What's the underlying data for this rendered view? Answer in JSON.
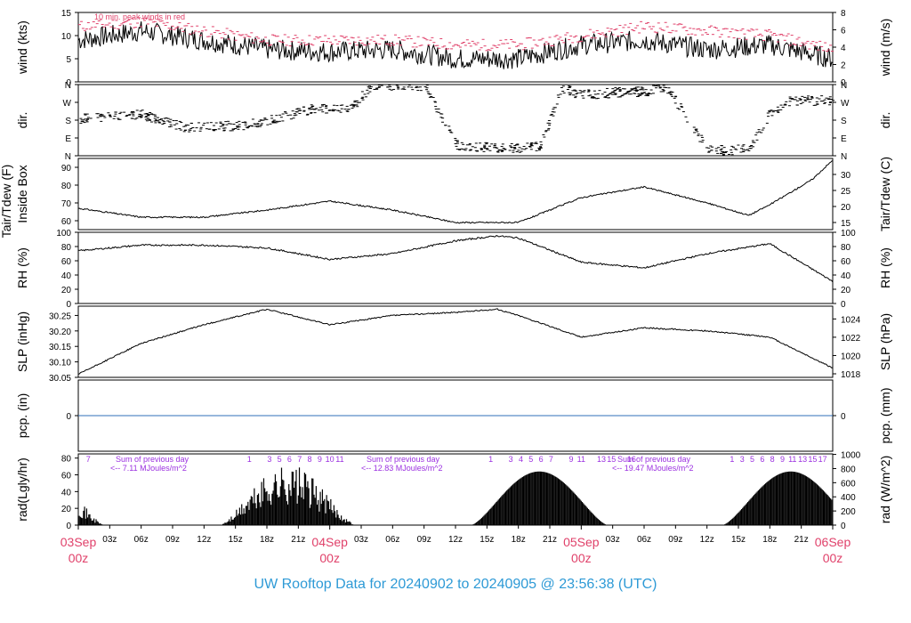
{
  "colors": {
    "peak": "#e0416a",
    "footer": "#2e9ad6",
    "precip": "#2f6fba",
    "date": "#e0416a",
    "solar": "#9b30e0",
    "trace": "#000000"
  },
  "footer": {
    "title": "UW Rooftop Data for 20240902  to  20240905 @ 23:56:38  (UTC)"
  },
  "chart_data": [
    {
      "type": "line",
      "id": "wind",
      "ylabel_left": "wind (kts)",
      "ylabel_right": "wind (m/s)",
      "ylim": [
        0,
        15
      ],
      "yticks_left": [
        "0",
        "5",
        "10",
        "15"
      ],
      "ylim_right": [
        0,
        8
      ],
      "yticks_right": [
        "0",
        "2",
        "4",
        "6",
        "8"
      ],
      "annotation": "10 min. peak winds in red",
      "series": [
        {
          "x": [
            0,
            6,
            12,
            18,
            24,
            30,
            36,
            42,
            48,
            54,
            60,
            66,
            72
          ],
          "values": [
            9,
            11,
            9,
            7,
            6.5,
            7,
            5,
            5,
            8,
            9,
            7,
            8,
            5
          ]
        },
        {
          "x": [
            0,
            6,
            12,
            18,
            24,
            30,
            36,
            42,
            48,
            54,
            60,
            66,
            72
          ],
          "values": [
            12,
            13,
            11,
            9,
            9,
            9,
            8,
            8,
            10,
            12,
            11,
            10,
            7
          ]
        }
      ]
    },
    {
      "type": "scatter",
      "id": "dir",
      "ylabel_left": "dir.",
      "ylabel_right": "dir.",
      "yticks_left": [
        "N",
        "W",
        "S",
        "E",
        "N"
      ],
      "yticks_right": [
        "N",
        "W",
        "S",
        "E",
        "N"
      ]
    },
    {
      "type": "line",
      "id": "temp",
      "ylabel_left_top": "Tair/Tdew (F)",
      "ylabel_left": "Inside Box",
      "ylabel_right": "Tair/Tdew (C)",
      "ylim": [
        55,
        95
      ],
      "yticks_left": [
        "60",
        "70",
        "80",
        "90"
      ],
      "yticks_right": [
        "15",
        "20",
        "25",
        "30"
      ],
      "series": [
        {
          "x": [
            0,
            6,
            12,
            18,
            24,
            30,
            36,
            42,
            48,
            54,
            60,
            64,
            66,
            70,
            72
          ],
          "values": [
            67,
            62,
            62,
            66,
            71,
            66,
            59,
            59,
            73,
            79,
            70,
            63,
            69,
            83,
            94
          ]
        }
      ]
    },
    {
      "type": "line",
      "id": "rh",
      "ylabel_left": "RH (%)",
      "ylabel_right": "RH (%)",
      "ylim": [
        0,
        100
      ],
      "yticks_left": [
        "0",
        "20",
        "40",
        "60",
        "80",
        "100"
      ],
      "yticks_right": [
        "0",
        "20",
        "40",
        "60",
        "80",
        "100"
      ],
      "series": [
        {
          "x": [
            0,
            6,
            12,
            18,
            24,
            30,
            36,
            40,
            42,
            48,
            54,
            60,
            66,
            72
          ],
          "values": [
            74,
            82,
            82,
            78,
            62,
            70,
            88,
            95,
            92,
            58,
            50,
            70,
            84,
            31
          ]
        }
      ]
    },
    {
      "type": "line",
      "id": "slp",
      "ylabel_left": "SLP (inHg)",
      "ylabel_right": "SLP (hPa)",
      "ylim": [
        30.05,
        30.28
      ],
      "yticks_left": [
        "30.05",
        "30.10",
        "30.15",
        "30.20",
        "30.25"
      ],
      "yticks_right": [
        "1018",
        "1020",
        "1022",
        "1024"
      ],
      "series": [
        {
          "x": [
            0,
            6,
            12,
            18,
            24,
            30,
            36,
            40,
            42,
            48,
            54,
            60,
            66,
            72
          ],
          "values": [
            30.06,
            30.16,
            30.22,
            30.27,
            30.22,
            30.25,
            30.26,
            30.27,
            30.25,
            30.18,
            30.21,
            30.2,
            30.18,
            30.08
          ]
        }
      ]
    },
    {
      "type": "line",
      "id": "pcp",
      "ylabel_left": "pcp. (in)",
      "ylabel_right": "pcp. (mm)",
      "yticks_left": [
        "0"
      ],
      "yticks_right": [
        "0"
      ],
      "series": [
        {
          "x": [
            0,
            72
          ],
          "values": [
            0,
            0
          ]
        }
      ]
    },
    {
      "type": "bar",
      "id": "rad",
      "ylabel_left": "rad(Lgly/hr)",
      "ylabel_right": "rad (W/m^2)",
      "ylim": [
        0,
        85
      ],
      "yticks_left": [
        "0",
        "20",
        "40",
        "60",
        "80"
      ],
      "yticks_right": [
        "0",
        "200",
        "400",
        "600",
        "800",
        "1000"
      ],
      "annotations": [
        {
          "line1": "Sum of previous day",
          "line2": "<-- 7.11 MJoules/m^2"
        },
        {
          "line1": "Sum of previous day",
          "line2": "<-- 12.83 MJoules/m^2"
        },
        {
          "line1": "Sum of previous day",
          "line2": "<-- 19.47 MJoules/m^2"
        }
      ],
      "hour_marks": [
        {
          "x": 1,
          "label": "7"
        },
        {
          "x": 17,
          "label": "1"
        },
        {
          "x": 19,
          "label": "3"
        },
        {
          "x": 20,
          "label": "5"
        },
        {
          "x": 21,
          "label": "6"
        },
        {
          "x": 22,
          "label": "7"
        },
        {
          "x": 23,
          "label": "8"
        },
        {
          "x": 24,
          "label": "9"
        },
        {
          "x": 25,
          "label": "10"
        },
        {
          "x": 26,
          "label": "11"
        },
        {
          "x": 41,
          "label": "1"
        },
        {
          "x": 43,
          "label": "3"
        },
        {
          "x": 44,
          "label": "4"
        },
        {
          "x": 45,
          "label": "5"
        },
        {
          "x": 46,
          "label": "6"
        },
        {
          "x": 47,
          "label": "7"
        },
        {
          "x": 49,
          "label": "9"
        },
        {
          "x": 50,
          "label": "11"
        },
        {
          "x": 52,
          "label": "13"
        },
        {
          "x": 53,
          "label": "15"
        },
        {
          "x": 55,
          "label": "16"
        },
        {
          "x": 65,
          "label": "1"
        },
        {
          "x": 66,
          "label": "3"
        },
        {
          "x": 67,
          "label": "5"
        },
        {
          "x": 68,
          "label": "6"
        },
        {
          "x": 69,
          "label": "8"
        },
        {
          "x": 70,
          "label": "9"
        },
        {
          "x": 71,
          "label": "11"
        },
        {
          "x": 72,
          "label": "13"
        },
        {
          "x": 73,
          "label": "15"
        },
        {
          "x": 74,
          "label": "17"
        }
      ]
    }
  ],
  "xaxis": {
    "range": [
      0,
      72
    ],
    "ticks": [
      {
        "x": 3,
        "label": "03z"
      },
      {
        "x": 6,
        "label": "06z"
      },
      {
        "x": 9,
        "label": "09z"
      },
      {
        "x": 12,
        "label": "12z"
      },
      {
        "x": 15,
        "label": "15z"
      },
      {
        "x": 18,
        "label": "18z"
      },
      {
        "x": 21,
        "label": "21z"
      },
      {
        "x": 27,
        "label": "03z"
      },
      {
        "x": 30,
        "label": "06z"
      },
      {
        "x": 33,
        "label": "09z"
      },
      {
        "x": 36,
        "label": "12z"
      },
      {
        "x": 39,
        "label": "15z"
      },
      {
        "x": 42,
        "label": "18z"
      },
      {
        "x": 45,
        "label": "21z"
      },
      {
        "x": 51,
        "label": "03z"
      },
      {
        "x": 54,
        "label": "06z"
      },
      {
        "x": 57,
        "label": "09z"
      },
      {
        "x": 60,
        "label": "12z"
      },
      {
        "x": 63,
        "label": "15z"
      },
      {
        "x": 66,
        "label": "18z"
      },
      {
        "x": 69,
        "label": "21z"
      }
    ],
    "dates": [
      {
        "x": 0,
        "day": "03Sep",
        "hour": "00z"
      },
      {
        "x": 24,
        "day": "04Sep",
        "hour": "00z"
      },
      {
        "x": 48,
        "day": "05Sep",
        "hour": "00z"
      },
      {
        "x": 72,
        "day": "06Sep",
        "hour": "00z"
      }
    ]
  }
}
